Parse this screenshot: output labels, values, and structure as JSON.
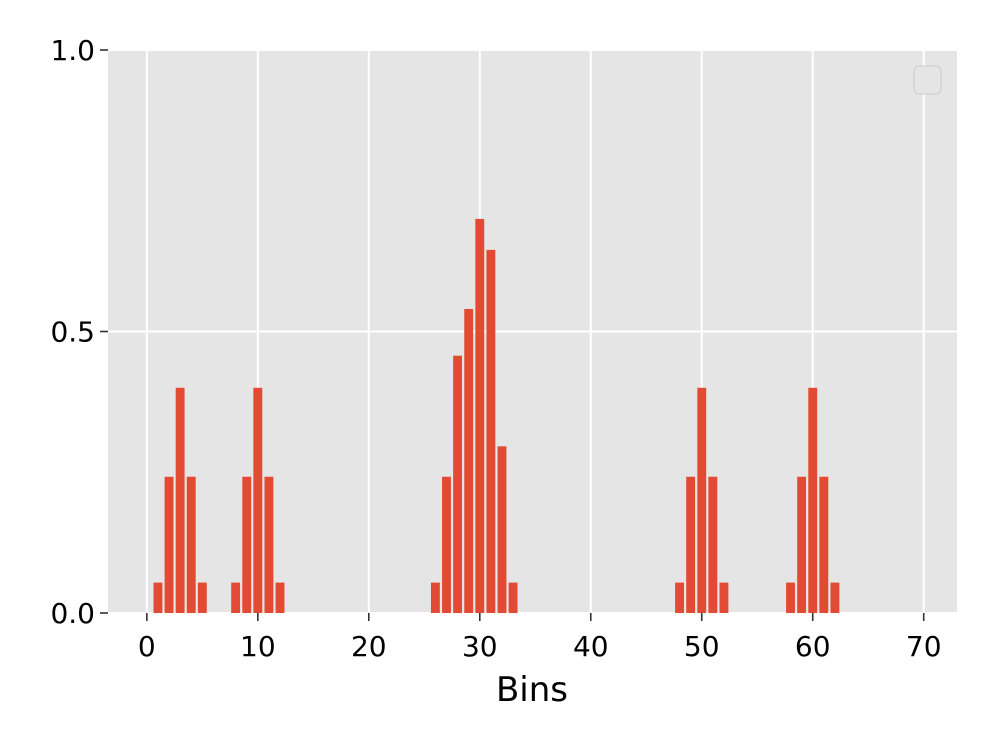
{
  "chart_data": {
    "type": "bar",
    "xlabel": "Bins",
    "ylabel": "",
    "title": "",
    "xlim": [
      -3.5,
      73
    ],
    "ylim": [
      0,
      1
    ],
    "xticks": [
      0,
      10,
      20,
      30,
      40,
      50,
      60,
      70
    ],
    "xtick_labels": [
      "0",
      "10",
      "20",
      "30",
      "40",
      "50",
      "60",
      "70"
    ],
    "yticks": [
      0,
      0.5,
      1
    ],
    "ytick_labels": [
      "0.0",
      "0.5",
      "1.0"
    ],
    "grid": true,
    "legend": {
      "placement": "top-right",
      "entries": []
    },
    "colors": {
      "bar": "#E24A33",
      "background": "#E5E5E5",
      "grid": "#FFFFFF",
      "legend_border": "#CCCCCC"
    },
    "x": [
      1,
      2,
      3,
      4,
      5,
      8,
      9,
      10,
      11,
      12,
      26,
      27,
      28,
      29,
      30,
      31,
      32,
      33,
      48,
      49,
      50,
      51,
      52,
      58,
      59,
      60,
      61,
      62
    ],
    "values": [
      0.054,
      0.242,
      0.4,
      0.242,
      0.054,
      0.054,
      0.242,
      0.4,
      0.242,
      0.054,
      0.054,
      0.242,
      0.457,
      0.54,
      0.7,
      0.645,
      0.296,
      0.054,
      0.054,
      0.242,
      0.4,
      0.242,
      0.054,
      0.054,
      0.242,
      0.4,
      0.242,
      0.054
    ]
  }
}
